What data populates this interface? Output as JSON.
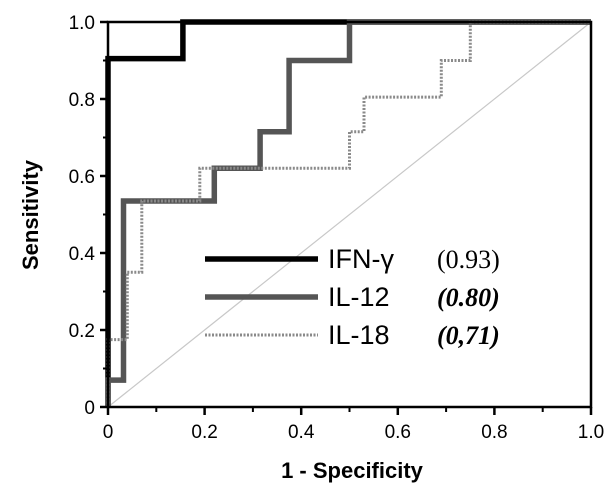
{
  "chart_data": {
    "type": "line",
    "xlabel": "1 - Specificity",
    "ylabel": "Sensitivity",
    "xlim": [
      0,
      1.0
    ],
    "ylim": [
      0,
      1.0
    ],
    "xticks": [
      {
        "value": 0,
        "label": "0"
      },
      {
        "value": 0.2,
        "label": "0.2"
      },
      {
        "value": 0.4,
        "label": "0.4"
      },
      {
        "value": 0.6,
        "label": "0.6"
      },
      {
        "value": 0.8,
        "label": "0.8"
      },
      {
        "value": 1.0,
        "label": "1.0"
      }
    ],
    "yticks": [
      {
        "value": 0,
        "label": "0"
      },
      {
        "value": 0.2,
        "label": "0.2"
      },
      {
        "value": 0.4,
        "label": "0.4"
      },
      {
        "value": 0.6,
        "label": "0.6"
      },
      {
        "value": 0.8,
        "label": "0.8"
      },
      {
        "value": 1.0,
        "label": "1.0"
      }
    ],
    "reference_line": {
      "x": [
        0,
        1
      ],
      "y": [
        0,
        1
      ]
    },
    "legend_position": "center-right",
    "series": [
      {
        "name": "IFN-γ",
        "auc_label": "(0.93)",
        "color": "#000000",
        "style": "solid-thick",
        "x": [
          0,
          0,
          0.155,
          0.155,
          1.0
        ],
        "y": [
          0,
          0.905,
          0.905,
          1.0,
          1.0
        ]
      },
      {
        "name": "IL-12",
        "auc_label": "(0.80)",
        "color": "#555555",
        "style": "solid-thick",
        "x": [
          0,
          0,
          0.032,
          0.032,
          0.22,
          0.22,
          0.315,
          0.315,
          0.375,
          0.375,
          0.5,
          0.5,
          1.0
        ],
        "y": [
          0,
          0.07,
          0.07,
          0.535,
          0.535,
          0.62,
          0.62,
          0.715,
          0.715,
          0.9,
          0.9,
          1.0,
          1.0
        ]
      },
      {
        "name": "IL-18",
        "auc_label": "(0,71)",
        "color": "#8a8a8a",
        "style": "dotted-thin",
        "x": [
          0,
          0,
          0.04,
          0.04,
          0.07,
          0.07,
          0.19,
          0.19,
          0.5,
          0.5,
          0.53,
          0.53,
          0.69,
          0.69,
          0.75,
          0.75,
          1.0
        ],
        "y": [
          0,
          0.175,
          0.175,
          0.35,
          0.35,
          0.535,
          0.535,
          0.62,
          0.62,
          0.715,
          0.715,
          0.805,
          0.805,
          0.9,
          0.9,
          1.0,
          1.0
        ]
      }
    ]
  }
}
